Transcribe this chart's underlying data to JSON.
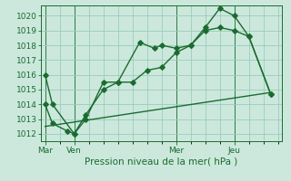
{
  "background_color": "#cce8dc",
  "plot_bg_color": "#cce8dc",
  "grid_color": "#99ccbb",
  "line_color": "#1a6b30",
  "xlabel": "Pression niveau de la mer( hPa )",
  "ylim": [
    1011.5,
    1020.7
  ],
  "yticks": [
    1012,
    1013,
    1014,
    1015,
    1016,
    1017,
    1018,
    1019,
    1020
  ],
  "xtick_labels": [
    "Mar",
    "Ven",
    "Mer",
    "Jeu"
  ],
  "xtick_positions": [
    0,
    2,
    9,
    13
  ],
  "xlim": [
    -0.3,
    16.3
  ],
  "vline_positions": [
    0,
    2,
    9,
    13
  ],
  "series1_x": [
    0,
    0.5,
    2,
    2.8,
    4,
    5,
    6.5,
    7.5,
    8,
    9,
    10,
    11,
    12,
    13,
    14,
    15.5
  ],
  "series1_y": [
    1016.0,
    1014.0,
    1012.0,
    1013.0,
    1015.5,
    1015.5,
    1018.2,
    1017.8,
    1018.0,
    1017.8,
    1018.0,
    1019.2,
    1020.5,
    1020.0,
    1018.6,
    1014.7
  ],
  "series2_x": [
    0,
    0.5,
    1.5,
    2,
    2.8,
    4,
    5,
    6,
    7,
    8,
    9,
    10,
    11,
    12,
    13,
    14,
    15.5
  ],
  "series2_y": [
    1014.0,
    1012.7,
    1012.2,
    1012.0,
    1013.3,
    1015.0,
    1015.5,
    1015.5,
    1016.3,
    1016.5,
    1017.5,
    1018.0,
    1019.0,
    1019.2,
    1019.0,
    1018.6,
    1014.7
  ],
  "series3_x": [
    0,
    15.5
  ],
  "series3_y": [
    1012.5,
    1014.8
  ],
  "marker": "D",
  "marker_size": 2.8,
  "linewidth": 1.0
}
